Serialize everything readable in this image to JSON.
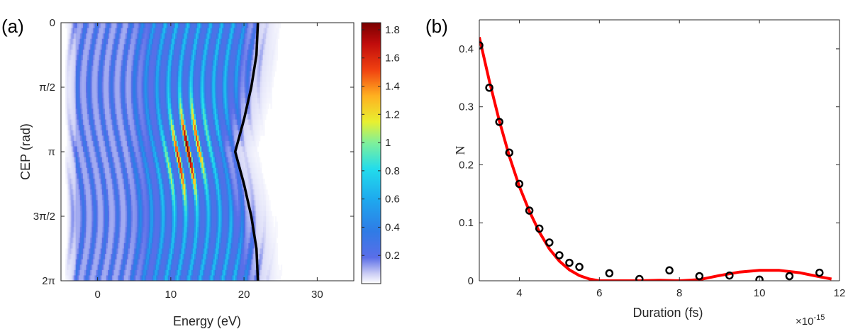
{
  "panels": {
    "a_label": "(a)",
    "b_label": "(b)"
  },
  "chart_data": [
    {
      "type": "heatmap",
      "panel": "(a)",
      "xlabel": "Energy (eV)",
      "ylabel": "CEP (rad)",
      "xlim": [
        -5,
        35
      ],
      "x_ticks": [
        0,
        10,
        20,
        30
      ],
      "x_tick_labels": [
        "0",
        "10",
        "20",
        "30"
      ],
      "y_ticks": [
        0,
        1.5708,
        3.1416,
        4.7124,
        6.2832
      ],
      "y_tick_labels": [
        "0",
        "π/2",
        "π",
        "3π/2",
        "2π"
      ],
      "y_reversed": true,
      "colormap": "jet-like (white → blue → cyan → yellow → red → dark red)",
      "colorbar": {
        "range": [
          0,
          1.85
        ],
        "ticks": [
          0.2,
          0.4,
          0.6,
          0.8,
          1.0,
          1.2,
          1.4,
          1.6,
          1.8
        ],
        "tick_labels": [
          "0.2",
          "0.4",
          "0.6",
          "0.8",
          "1",
          "1.2",
          "1.4",
          "1.6",
          "1.8"
        ]
      },
      "cutoff_curve": {
        "color": "#000000",
        "cep": [
          0,
          0.785,
          1.571,
          2.356,
          3.1416,
          3.927,
          4.712,
          5.498,
          6.2832
        ],
        "energy": [
          21.9,
          21.7,
          21.0,
          20.0,
          18.8,
          20.0,
          21.0,
          21.7,
          21.9
        ]
      }
    },
    {
      "type": "scatter",
      "panel": "(b)",
      "xlabel": "Duration (fs)",
      "ylabel": "N",
      "x_exponent_label": "×10",
      "x_exponent_power": "-15",
      "xlim": [
        3,
        12
      ],
      "ylim": [
        0,
        0.45
      ],
      "x_ticks": [
        4,
        6,
        8,
        10,
        12
      ],
      "x_tick_labels": [
        "4",
        "6",
        "8",
        "10",
        "12"
      ],
      "y_ticks": [
        0,
        0.1,
        0.2,
        0.3,
        0.4
      ],
      "y_tick_labels": [
        "0",
        "0.1",
        "0.2",
        "0.3",
        "0.4"
      ],
      "series": [
        {
          "style": "markers",
          "color": "#000000",
          "x": [
            3.0,
            3.25,
            3.5,
            3.75,
            4.0,
            4.25,
            4.5,
            4.75,
            5.0,
            5.25,
            5.5,
            6.25,
            7.0,
            7.75,
            8.5,
            9.25,
            10.0,
            10.75,
            11.5
          ],
          "y": [
            0.406,
            0.333,
            0.274,
            0.221,
            0.167,
            0.121,
            0.09,
            0.066,
            0.044,
            0.031,
            0.024,
            0.013,
            0.003,
            0.018,
            0.008,
            0.009,
            0.002,
            0.008,
            0.014
          ]
        },
        {
          "style": "line",
          "color": "#ff0000",
          "x": [
            3.0,
            3.25,
            3.5,
            3.75,
            4.0,
            4.25,
            4.5,
            4.75,
            5.0,
            5.25,
            5.5,
            5.75,
            6.0,
            6.5,
            7.0,
            7.5,
            8.0,
            8.5,
            9.0,
            9.5,
            10.0,
            10.5,
            11.0,
            11.5,
            11.8
          ],
          "y": [
            0.42,
            0.345,
            0.276,
            0.215,
            0.163,
            0.12,
            0.084,
            0.055,
            0.034,
            0.019,
            0.009,
            0.003,
            0.0,
            0.0,
            0.0,
            0.001,
            0.0,
            0.002,
            0.009,
            0.015,
            0.018,
            0.018,
            0.014,
            0.007,
            0.003
          ]
        }
      ]
    }
  ]
}
